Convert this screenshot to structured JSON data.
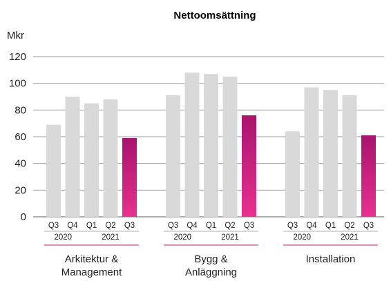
{
  "chart_data": {
    "type": "bar",
    "title": "Nettoomsättning",
    "ylabel": "Mkr",
    "ylim": [
      0,
      120
    ],
    "yticks": [
      0,
      20,
      40,
      60,
      80,
      100,
      120
    ],
    "quarters": [
      "Q3",
      "Q4",
      "Q1",
      "Q2",
      "Q3"
    ],
    "years": [
      {
        "label": "2020",
        "quarters": [
          "Q3",
          "Q4"
        ]
      },
      {
        "label": "2021",
        "quarters": [
          "Q1",
          "Q2",
          "Q3"
        ]
      }
    ],
    "groups": [
      {
        "name": "Arkitektur &\nManagement",
        "values": [
          69,
          90,
          85,
          88,
          59
        ]
      },
      {
        "name": "Bygg &\nAnläggning",
        "values": [
          91,
          108,
          107,
          105,
          76
        ]
      },
      {
        "name": "Installation",
        "values": [
          64,
          97,
          95,
          91,
          61
        ]
      }
    ],
    "colors": {
      "previous_bars": "#d9d9d9",
      "current_bar_top": "#a8146e",
      "current_bar_bottom": "#e8308f",
      "group_underline": "#c41e6e",
      "grid": "#9a9a9a"
    },
    "grid": true
  }
}
